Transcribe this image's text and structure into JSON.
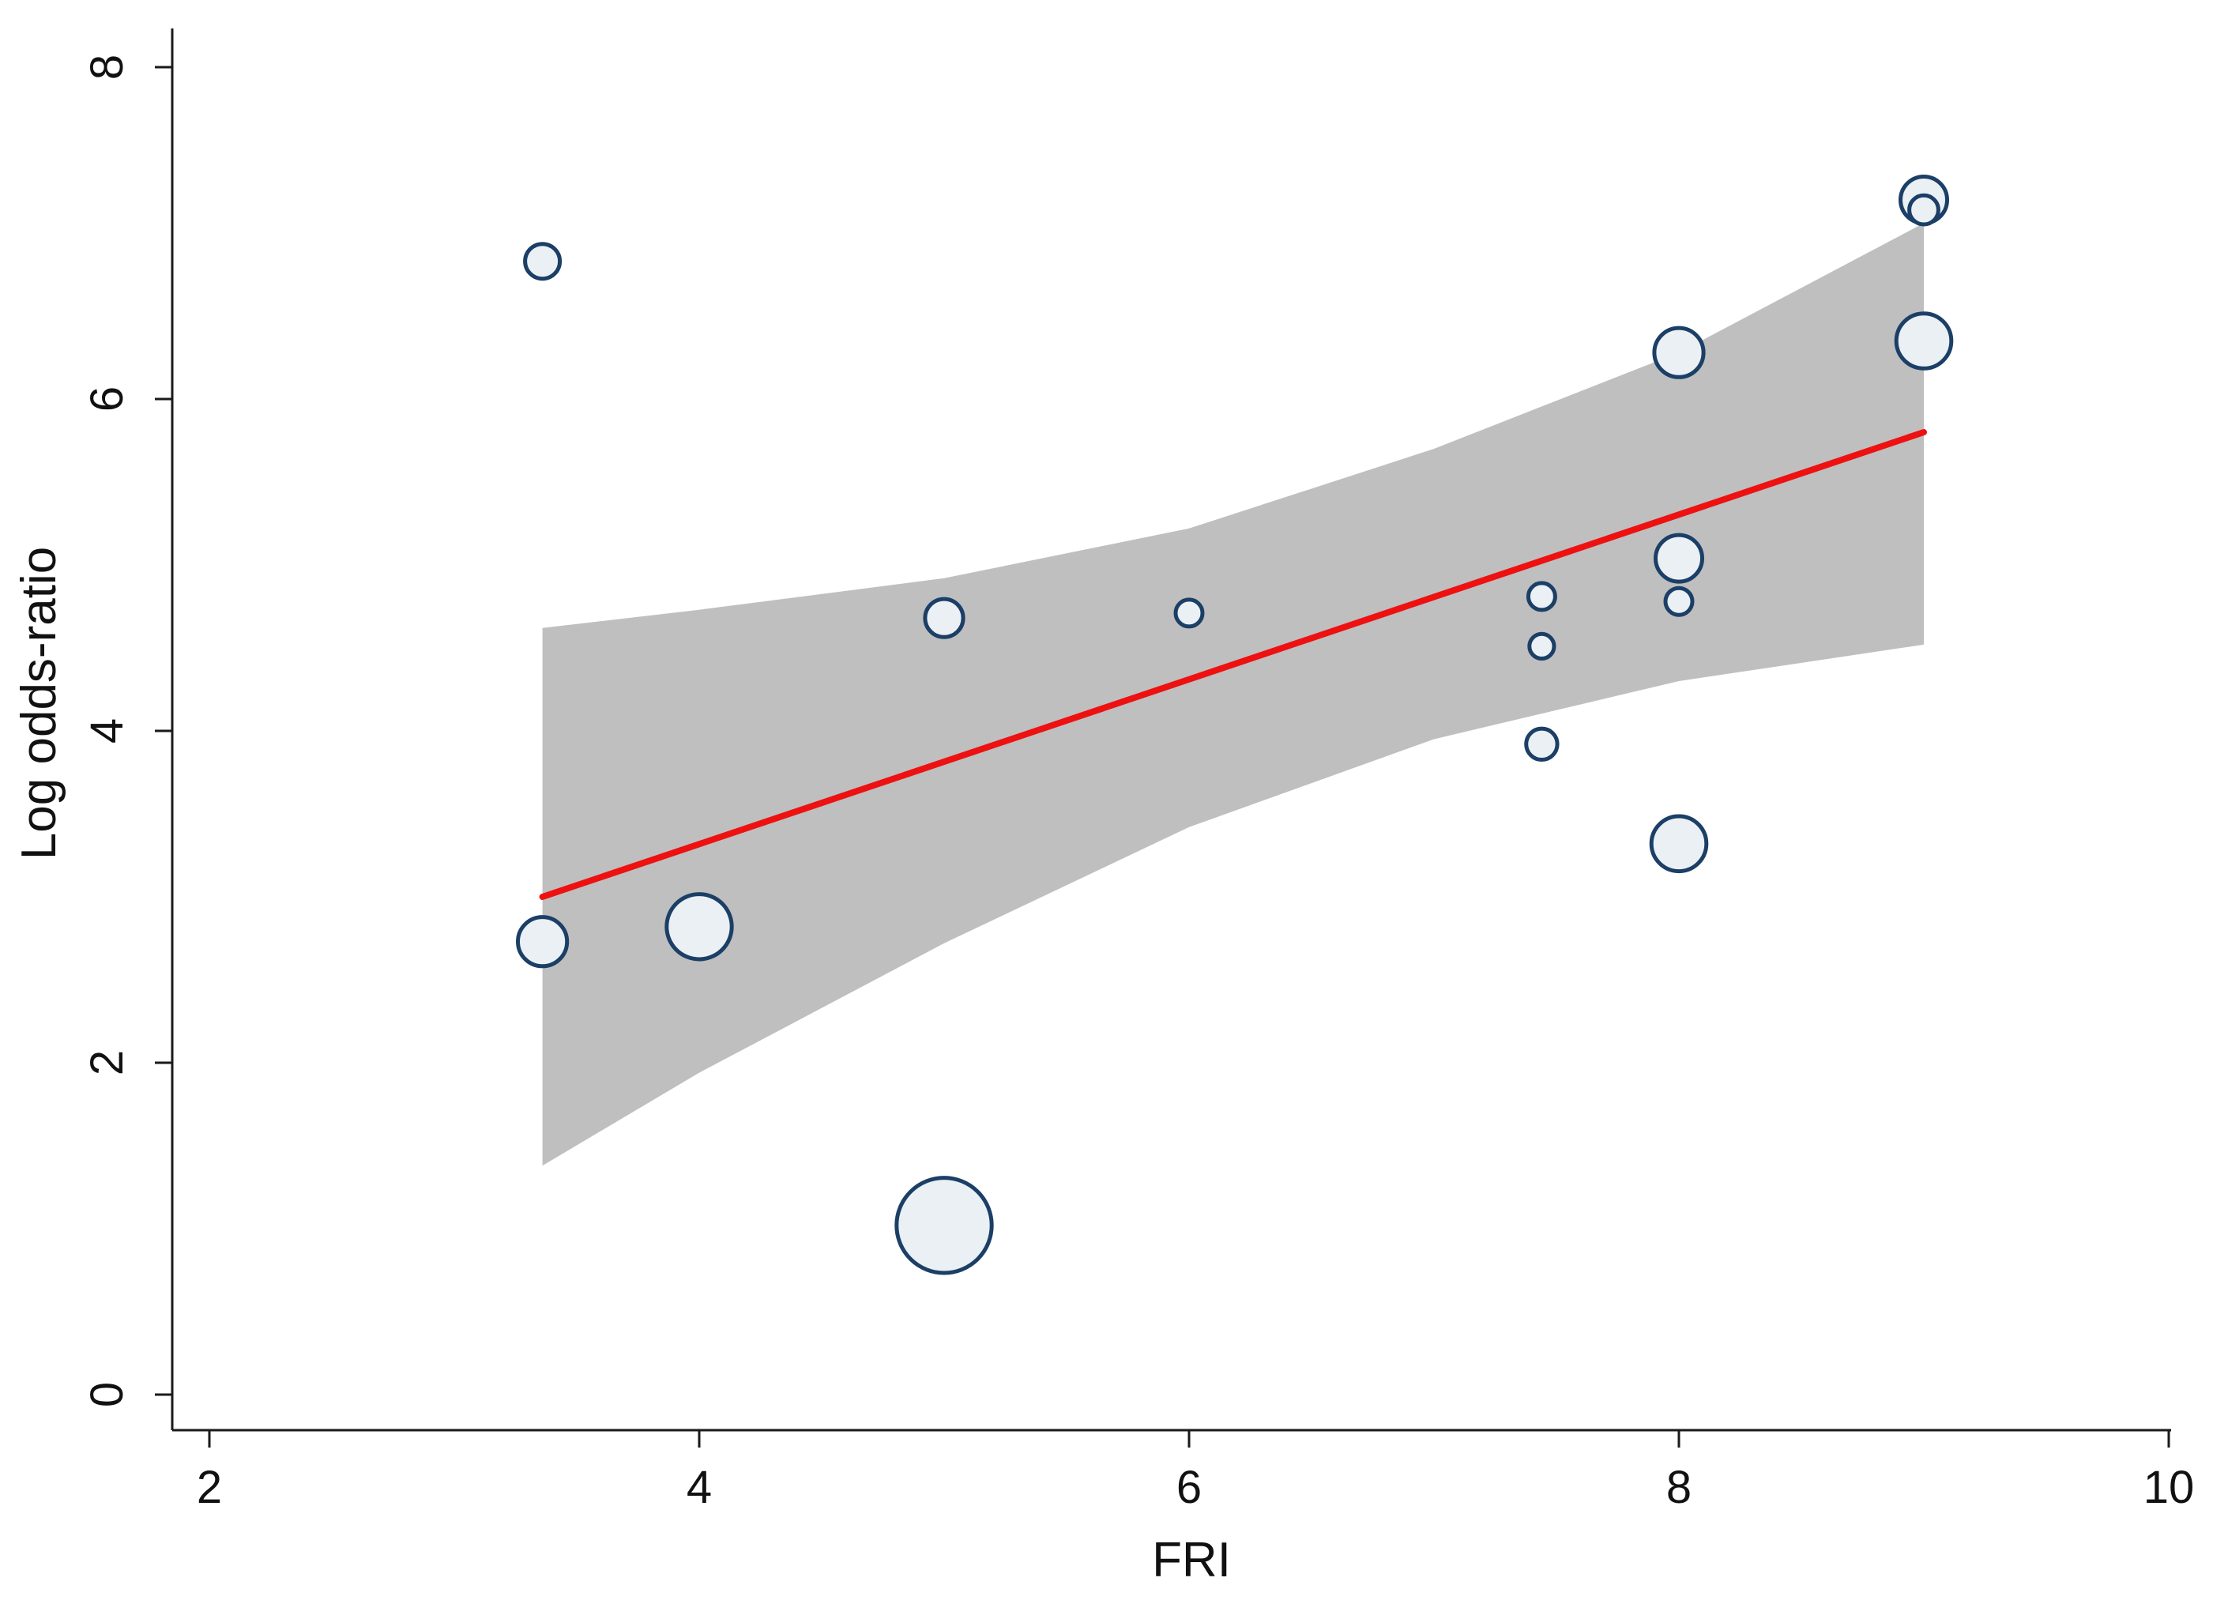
{
  "chart_data": {
    "type": "scatter",
    "title": "",
    "xlabel": "FRI",
    "ylabel": "Log odds-ratio",
    "xlim": [
      2,
      10
    ],
    "ylim": [
      0,
      8
    ],
    "x_ticks": [
      "2",
      "4",
      "6",
      "8",
      "10"
    ],
    "y_ticks": [
      "0",
      "2",
      "4",
      "6",
      "8"
    ],
    "grid": false,
    "legend": "none",
    "colors": {
      "fit_line": "#ee1111",
      "ci_band": "#bfbfbf",
      "bubble_stroke": "#1b3f66",
      "bubble_fill": "#eaf0f4"
    },
    "points": [
      {
        "x": 3.36,
        "y": 6.83,
        "weight": 1.0
      },
      {
        "x": 3.36,
        "y": 2.73,
        "weight": 2.0
      },
      {
        "x": 4.0,
        "y": 2.82,
        "weight": 3.5
      },
      {
        "x": 5.0,
        "y": 4.68,
        "weight": 1.2
      },
      {
        "x": 5.0,
        "y": 1.02,
        "weight": 7.5
      },
      {
        "x": 6.0,
        "y": 4.71,
        "weight": 0.6
      },
      {
        "x": 7.44,
        "y": 4.81,
        "weight": 0.6
      },
      {
        "x": 7.44,
        "y": 4.51,
        "weight": 0.5
      },
      {
        "x": 7.44,
        "y": 3.92,
        "weight": 0.8
      },
      {
        "x": 8.0,
        "y": 6.28,
        "weight": 2.0
      },
      {
        "x": 8.0,
        "y": 5.04,
        "weight": 1.8
      },
      {
        "x": 8.0,
        "y": 4.78,
        "weight": 0.6
      },
      {
        "x": 8.0,
        "y": 3.32,
        "weight": 2.5
      },
      {
        "x": 9.0,
        "y": 7.2,
        "weight": 1.8
      },
      {
        "x": 9.0,
        "y": 7.14,
        "weight": 0.7
      },
      {
        "x": 9.0,
        "y": 6.35,
        "weight": 2.5
      }
    ],
    "fit_line": {
      "x": [
        3.36,
        9.0
      ],
      "y": [
        3.0,
        5.8
      ]
    },
    "ci_band": {
      "x": [
        3.36,
        4.0,
        5.0,
        6.0,
        7.0,
        8.0,
        9.0
      ],
      "upper": [
        4.62,
        4.73,
        4.92,
        5.22,
        5.7,
        6.28,
        7.06
      ],
      "lower": [
        1.38,
        1.94,
        2.72,
        3.42,
        3.95,
        4.3,
        4.52
      ]
    }
  }
}
